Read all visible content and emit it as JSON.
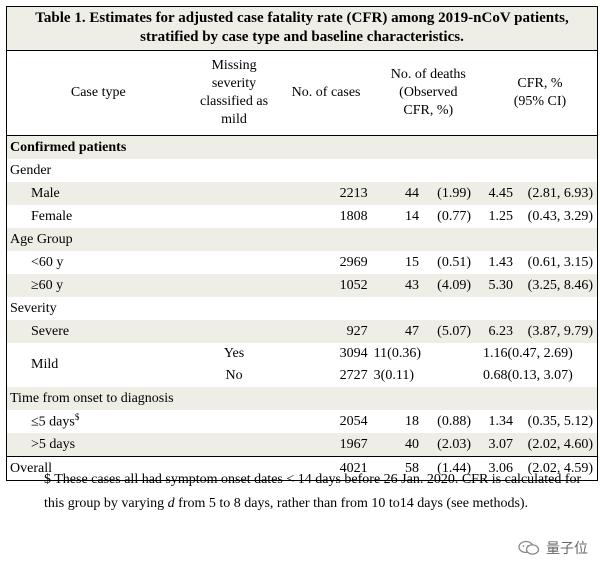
{
  "title_line1": "Table 1. Estimates for adjusted case fatality rate (CFR) among 2019-nCoV patients,",
  "title_line2": "stratified by case type and baseline characteristics.",
  "headers": {
    "case_type": "Case type",
    "missing": [
      "Missing",
      "severity",
      "classified as",
      "mild"
    ],
    "cases": "No. of cases",
    "deaths": [
      "No. of deaths",
      "(Observed",
      "CFR, %)"
    ],
    "cfr": [
      "CFR, %",
      "(95% CI)"
    ]
  },
  "sections": {
    "confirmed": "Confirmed patients",
    "gender": "Gender",
    "age": "Age Group",
    "severity": "Severity",
    "onset": "Time from onset to diagnosis"
  },
  "rows": {
    "male": {
      "label": "Male",
      "cases": "2213",
      "deaths": "44",
      "obs": "(1.99)",
      "cfr": "4.45",
      "ci": "(2.81, 6.93)"
    },
    "female": {
      "label": "Female",
      "cases": "1808",
      "deaths": "14",
      "obs": "(0.77)",
      "cfr": "1.25",
      "ci": "(0.43, 3.29)"
    },
    "under60": {
      "label": "<60 y",
      "cases": "2969",
      "deaths": "15",
      "obs": "(0.51)",
      "cfr": "1.43",
      "ci": "(0.61, 3.15)"
    },
    "over60": {
      "label": "≥60 y",
      "cases": "1052",
      "deaths": "43",
      "obs": "(4.09)",
      "cfr": "5.30",
      "ci": "(3.25, 8.46)"
    },
    "severe": {
      "label": "Severe",
      "cases": "927",
      "deaths": "47",
      "obs": "(5.07)",
      "cfr": "6.23",
      "ci": "(3.87, 9.79)"
    },
    "mild": {
      "label": "Mild"
    },
    "mild_yes": {
      "missing": "Yes",
      "cases": "3094",
      "deaths": "11",
      "obs": "(0.36)",
      "cfr": "1.16",
      "ci": "(0.47, 2.69)"
    },
    "mild_no": {
      "missing": "No",
      "cases": "2727",
      "deaths": "3",
      "obs": "(0.11)",
      "cfr": "0.68",
      "ci": "(0.13, 3.07)"
    },
    "le5": {
      "label": "≤5 days",
      "sup": "$",
      "cases": "2054",
      "deaths": "18",
      "obs": "(0.88)",
      "cfr": "1.34",
      "ci": "(0.35, 5.12)"
    },
    "gt5": {
      "label": ">5 days",
      "cases": "1967",
      "deaths": "40",
      "obs": "(2.03)",
      "cfr": "3.07",
      "ci": "(2.02, 4.60)"
    },
    "overall": {
      "label": "Overall",
      "cases": "4021",
      "deaths": "58",
      "obs": "(1.44)",
      "cfr": "3.06",
      "ci": "(2.02, 4.59)"
    }
  },
  "footnote": {
    "part1": "$ These cases all had symptom onset dates < 14 days before 26 Jan. 2020. CFR is calculated for this group by varying ",
    "italic": "d",
    "part2": " from 5 to 8 days, rather than from 10 to14 days (see methods)."
  },
  "watermark": "量子位"
}
